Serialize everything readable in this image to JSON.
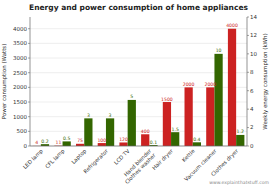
{
  "chart_data": {
    "type": "bar",
    "title": "Energy and power consumption of home appliances",
    "categories": [
      "LED lamp",
      "CFL lamp",
      "Laptop",
      "Refrigerator",
      "LCD TV",
      "Hand blender",
      "Hair dryer",
      "Kettle",
      "Vacuum cleaner",
      "Clothes dryer"
    ],
    "annotations": [
      {
        "text": "Clothes washer",
        "category": "Hand blender"
      },
      {
        "text": "www.explainthatstuff.com"
      }
    ],
    "ylabel": "Power consumption (Watts)",
    "y2label": "Weekly energy consumption (kWh)",
    "ylim": [
      0,
      4400
    ],
    "yticks": [
      0,
      500,
      1000,
      1500,
      2000,
      2500,
      3000,
      3500,
      4000
    ],
    "y2lim": [
      0,
      14
    ],
    "y2ticks": [
      0,
      2,
      4,
      6,
      8,
      10,
      12,
      14
    ],
    "grid": true,
    "data_labels": true,
    "series": [
      {
        "color": "#cc2222",
        "values": [
          4,
          11,
          75,
          100,
          120,
          400,
          1500,
          2000,
          2000,
          4000
        ]
      },
      {
        "color": "#336600",
        "values": [
          0.2,
          0.5,
          3,
          3,
          5,
          0.1,
          1.5,
          0.4,
          10,
          1.2
        ],
        "axis": "y2"
      }
    ]
  }
}
